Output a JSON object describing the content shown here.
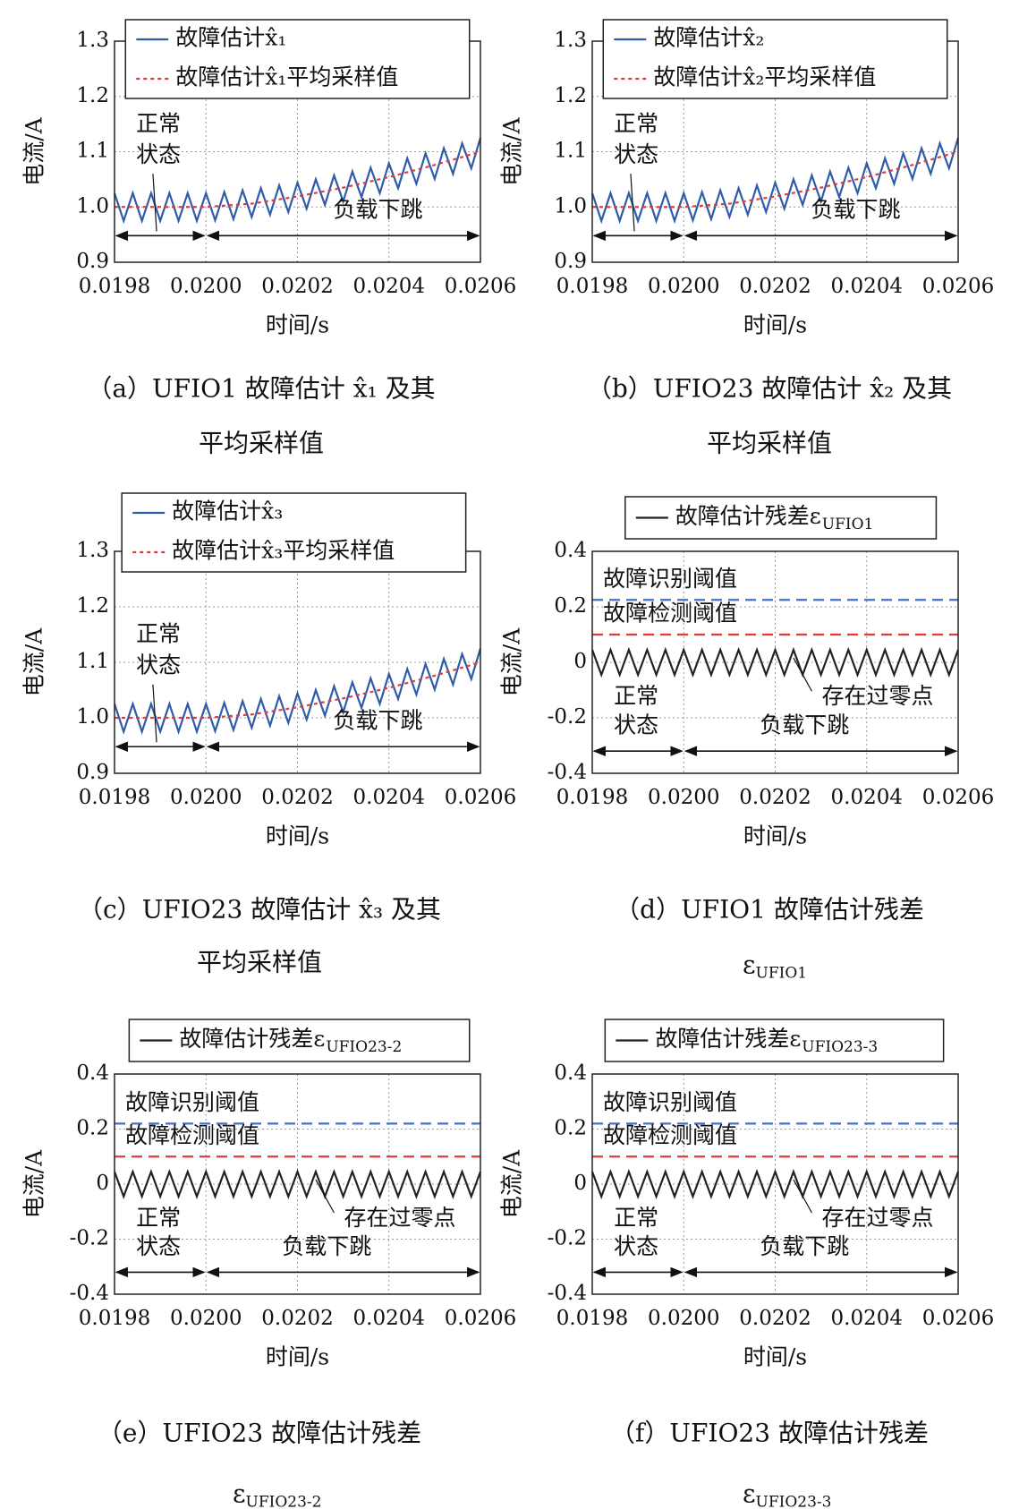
{
  "chart_data": [
    {
      "type": "line",
      "ylabel": "电流/A",
      "xlabel": "时间/s",
      "caption": [
        "（a）UFIO1 故障估计 x̂₁ 及其",
        "平均采样值"
      ],
      "xlim": [
        0.0198,
        0.0206
      ],
      "xticks": [
        0.0198,
        {
          "value": 0.02,
          "label": "0.0200"
        },
        0.0202,
        0.0204,
        0.0206
      ],
      "ylim": [
        0.9,
        1.3
      ],
      "yticks": [
        0.9,
        {
          "value": 1,
          "label": "1.0"
        },
        1.1,
        1.2,
        1.3
      ],
      "grid": true,
      "legend": "upper left",
      "series": [
        {
          "name": "故障估计x̂₁",
          "color": "#2e5ca8",
          "linestyle": "solid",
          "x": [
            0.0198,
            0.01982,
            0.01984,
            0.01986,
            0.01988,
            0.0199,
            0.01992,
            0.01994,
            0.01996,
            0.01998,
            0.02,
            0.02002,
            0.02004,
            0.02006,
            0.02008,
            0.0201,
            0.02012,
            0.02014,
            0.02016,
            0.02018,
            0.0202,
            0.02022,
            0.02024,
            0.02026,
            0.02028,
            0.0203,
            0.02032,
            0.02034,
            0.02036,
            0.02038,
            0.0204,
            0.02042,
            0.02044,
            0.02046,
            0.02048,
            0.0205,
            0.02052,
            0.02054,
            0.02056,
            0.02058,
            0.0206
          ],
          "values": [
            1.025,
            0.975,
            1.025,
            0.975,
            1.025,
            0.975,
            1.025,
            0.975,
            1.025,
            0.975,
            1.025,
            0.976,
            1.027,
            0.978,
            1.03,
            0.982,
            1.034,
            0.986,
            1.039,
            0.991,
            1.044,
            0.997,
            1.05,
            1.004,
            1.057,
            1.01,
            1.064,
            1.018,
            1.071,
            1.025,
            1.079,
            1.034,
            1.088,
            1.042,
            1.097,
            1.051,
            1.106,
            1.06,
            1.115,
            1.07,
            1.125
          ]
        },
        {
          "name": "故障估计x̂₁平均采样值",
          "color": "#e03c3c",
          "linestyle": "dotted",
          "x": [
            0.0198,
            0.02,
            0.0201,
            0.0202,
            0.0203,
            0.0204,
            0.0205,
            0.0206
          ],
          "values": [
            1,
            1,
            1.006,
            1.019,
            1.035,
            1.054,
            1.076,
            1.1
          ]
        }
      ],
      "spans": [
        {
          "label": [
            "正常",
            "状态"
          ],
          "from": 0.0198,
          "to": 0.02
        },
        {
          "label": [
            "负载下跳"
          ],
          "from": 0.02,
          "to": 0.0206
        }
      ]
    },
    {
      "type": "line",
      "ylabel": "电流/A",
      "xlabel": "时间/s",
      "caption": [
        "（b）UFIO23 故障估计 x̂₂ 及其",
        "平均采样值"
      ],
      "xlim": [
        0.0198,
        0.0206
      ],
      "xticks": [
        0.0198,
        {
          "value": 0.02,
          "label": "0.0200"
        },
        0.0202,
        0.0204,
        0.0206
      ],
      "ylim": [
        0.9,
        1.3
      ],
      "yticks": [
        0.9,
        {
          "value": 1,
          "label": "1.0"
        },
        1.1,
        1.2,
        1.3
      ],
      "grid": true,
      "legend": "upper left",
      "series": [
        {
          "name": "故障估计x̂₂",
          "color": "#2e5ca8",
          "linestyle": "solid",
          "x": [
            0.0198,
            0.01982,
            0.01984,
            0.01986,
            0.01988,
            0.0199,
            0.01992,
            0.01994,
            0.01996,
            0.01998,
            0.02,
            0.02002,
            0.02004,
            0.02006,
            0.02008,
            0.0201,
            0.02012,
            0.02014,
            0.02016,
            0.02018,
            0.0202,
            0.02022,
            0.02024,
            0.02026,
            0.02028,
            0.0203,
            0.02032,
            0.02034,
            0.02036,
            0.02038,
            0.0204,
            0.02042,
            0.02044,
            0.02046,
            0.02048,
            0.0205,
            0.02052,
            0.02054,
            0.02056,
            0.02058,
            0.0206
          ],
          "values": [
            1.025,
            0.975,
            1.025,
            0.975,
            1.025,
            0.975,
            1.025,
            0.975,
            1.025,
            0.975,
            1.025,
            0.976,
            1.027,
            0.978,
            1.03,
            0.982,
            1.034,
            0.986,
            1.039,
            0.991,
            1.044,
            0.997,
            1.05,
            1.004,
            1.057,
            1.01,
            1.064,
            1.018,
            1.071,
            1.025,
            1.079,
            1.034,
            1.088,
            1.042,
            1.097,
            1.051,
            1.106,
            1.06,
            1.115,
            1.07,
            1.125
          ]
        },
        {
          "name": "故障估计x̂₂平均采样值",
          "color": "#e03c3c",
          "linestyle": "dotted",
          "x": [
            0.0198,
            0.02,
            0.0201,
            0.0202,
            0.0203,
            0.0204,
            0.0205,
            0.0206
          ],
          "values": [
            1,
            1,
            1.006,
            1.019,
            1.035,
            1.054,
            1.076,
            1.1
          ]
        }
      ],
      "spans": [
        {
          "label": [
            "正常",
            "状态"
          ],
          "from": 0.0198,
          "to": 0.02
        },
        {
          "label": [
            "负载下跳"
          ],
          "from": 0.02,
          "to": 0.0206
        }
      ]
    },
    {
      "type": "line",
      "ylabel": "电流/A",
      "xlabel": "时间/s",
      "caption": [
        "（c）UFIO23 故障估计 x̂₃ 及其",
        "平均采样值"
      ],
      "xlim": [
        0.0198,
        0.0206
      ],
      "xticks": [
        0.0198,
        {
          "value": 0.02,
          "label": "0.0200"
        },
        0.0202,
        0.0204,
        0.0206
      ],
      "ylim": [
        0.9,
        1.3
      ],
      "yticks": [
        0.9,
        {
          "value": 1,
          "label": "1.0"
        },
        1.1,
        1.2,
        1.3
      ],
      "grid": true,
      "legend": "upper left",
      "series": [
        {
          "name": "故障估计x̂₃",
          "color": "#2e5ca8",
          "linestyle": "solid",
          "x": [
            0.0198,
            0.01982,
            0.01984,
            0.01986,
            0.01988,
            0.0199,
            0.01992,
            0.01994,
            0.01996,
            0.01998,
            0.02,
            0.02002,
            0.02004,
            0.02006,
            0.02008,
            0.0201,
            0.02012,
            0.02014,
            0.02016,
            0.02018,
            0.0202,
            0.02022,
            0.02024,
            0.02026,
            0.02028,
            0.0203,
            0.02032,
            0.02034,
            0.02036,
            0.02038,
            0.0204,
            0.02042,
            0.02044,
            0.02046,
            0.02048,
            0.0205,
            0.02052,
            0.02054,
            0.02056,
            0.02058,
            0.0206
          ],
          "values": [
            1.025,
            0.975,
            1.025,
            0.975,
            1.025,
            0.975,
            1.025,
            0.975,
            1.025,
            0.975,
            1.025,
            0.976,
            1.027,
            0.978,
            1.03,
            0.982,
            1.034,
            0.986,
            1.039,
            0.991,
            1.044,
            0.997,
            1.05,
            1.004,
            1.057,
            1.01,
            1.064,
            1.018,
            1.071,
            1.025,
            1.079,
            1.034,
            1.088,
            1.042,
            1.097,
            1.051,
            1.106,
            1.06,
            1.115,
            1.07,
            1.125
          ]
        },
        {
          "name": "故障估计x̂₃平均采样值",
          "color": "#e03c3c",
          "linestyle": "dotted",
          "x": [
            0.0198,
            0.02,
            0.0201,
            0.0202,
            0.0203,
            0.0204,
            0.0205,
            0.0206
          ],
          "values": [
            1,
            1,
            1.006,
            1.019,
            1.035,
            1.054,
            1.076,
            1.1
          ]
        }
      ],
      "spans": [
        {
          "label": [
            "正常",
            "状态"
          ],
          "from": 0.0198,
          "to": 0.02
        },
        {
          "label": [
            "负载下跳"
          ],
          "from": 0.02,
          "to": 0.0206
        }
      ]
    },
    {
      "type": "line",
      "ylabel": "电流/A",
      "xlabel": "时间/s",
      "caption": [
        "（d）UFIO1 故障估计残差",
        {
          "text": "ε",
          "sub": "UFIO1"
        }
      ],
      "xlim": [
        0.0198,
        0.0206
      ],
      "xticks": [
        0.0198,
        {
          "value": 0.02,
          "label": "0.0200"
        },
        0.0202,
        0.0204,
        0.0206
      ],
      "ylim": [
        -0.4,
        0.4
      ],
      "yticks": [
        -0.4,
        -0.2,
        0,
        0.2,
        0.4
      ],
      "grid": true,
      "legend": "top",
      "series": [
        {
          "name": "故障估计残差ε",
          "name_sub": "UFIO1",
          "color": "#222222",
          "linestyle": "solid",
          "x": [
            0.0198,
            0.01982,
            0.01984,
            0.01986,
            0.01988,
            0.0199,
            0.01992,
            0.01994,
            0.01996,
            0.01998,
            0.02,
            0.02002,
            0.02004,
            0.02006,
            0.02008,
            0.0201,
            0.02012,
            0.02014,
            0.02016,
            0.02018,
            0.0202,
            0.02022,
            0.02024,
            0.02026,
            0.02028,
            0.0203,
            0.02032,
            0.02034,
            0.02036,
            0.02038,
            0.0204,
            0.02042,
            0.02044,
            0.02046,
            0.02048,
            0.0205,
            0.02052,
            0.02054,
            0.02056,
            0.02058,
            0.0206
          ],
          "values": [
            0.045,
            -0.045,
            0.045,
            -0.045,
            0.045,
            -0.045,
            0.045,
            -0.045,
            0.045,
            -0.045,
            0.045,
            -0.045,
            0.045,
            -0.045,
            0.045,
            -0.045,
            0.045,
            -0.045,
            0.045,
            -0.045,
            0.045,
            -0.045,
            0.045,
            -0.045,
            0.045,
            -0.045,
            0.045,
            -0.045,
            0.045,
            -0.045,
            0.045,
            -0.045,
            0.045,
            -0.045,
            0.045,
            -0.045,
            0.045,
            -0.045,
            0.045,
            -0.045,
            0.045
          ]
        }
      ],
      "hlines": [
        {
          "label": "故障识别阈值",
          "value": 0.225,
          "color": "#4472c4"
        },
        {
          "label": "故障检测阈值",
          "value": 0.1,
          "color": "#e03c3c"
        }
      ],
      "annotations": [
        "存在过零点"
      ],
      "spans": [
        {
          "label": [
            "正常",
            "状态"
          ],
          "from": 0.0198,
          "to": 0.02
        },
        {
          "label": [
            "负载下跳"
          ],
          "from": 0.02,
          "to": 0.0206
        }
      ]
    },
    {
      "type": "line",
      "ylabel": "电流/A",
      "xlabel": "时间/s",
      "caption": [
        "（e）UFIO23 故障估计残差",
        {
          "text": "ε",
          "sub": "UFIO23-2"
        }
      ],
      "xlim": [
        0.0198,
        0.0206
      ],
      "xticks": [
        0.0198,
        {
          "value": 0.02,
          "label": "0.0200"
        },
        0.0202,
        0.0204,
        0.0206
      ],
      "ylim": [
        -0.4,
        0.4
      ],
      "yticks": [
        -0.4,
        -0.2,
        0,
        0.2,
        0.4
      ],
      "grid": true,
      "legend": "top",
      "series": [
        {
          "name": "故障估计残差ε",
          "name_sub": "UFIO23-2",
          "color": "#222222",
          "linestyle": "solid",
          "x": [
            0.0198,
            0.01982,
            0.01984,
            0.01986,
            0.01988,
            0.0199,
            0.01992,
            0.01994,
            0.01996,
            0.01998,
            0.02,
            0.02002,
            0.02004,
            0.02006,
            0.02008,
            0.0201,
            0.02012,
            0.02014,
            0.02016,
            0.02018,
            0.0202,
            0.02022,
            0.02024,
            0.02026,
            0.02028,
            0.0203,
            0.02032,
            0.02034,
            0.02036,
            0.02038,
            0.0204,
            0.02042,
            0.02044,
            0.02046,
            0.02048,
            0.0205,
            0.02052,
            0.02054,
            0.02056,
            0.02058,
            0.0206
          ],
          "values": [
            0.045,
            -0.045,
            0.045,
            -0.045,
            0.045,
            -0.045,
            0.045,
            -0.045,
            0.045,
            -0.045,
            0.045,
            -0.045,
            0.045,
            -0.045,
            0.045,
            -0.045,
            0.045,
            -0.045,
            0.045,
            -0.045,
            0.045,
            -0.045,
            0.045,
            -0.045,
            0.045,
            -0.045,
            0.045,
            -0.045,
            0.045,
            -0.045,
            0.045,
            -0.045,
            0.045,
            -0.045,
            0.045,
            -0.045,
            0.045,
            -0.045,
            0.045,
            -0.045,
            0.045
          ]
        }
      ],
      "hlines": [
        {
          "label": "故障识别阈值",
          "value": 0.22,
          "color": "#4472c4"
        },
        {
          "label": "故障检测阈值",
          "value": 0.1,
          "color": "#e03c3c"
        }
      ],
      "annotations": [
        "存在过零点"
      ],
      "spans": [
        {
          "label": [
            "正常",
            "状态"
          ],
          "from": 0.0198,
          "to": 0.02
        },
        {
          "label": [
            "负载下跳"
          ],
          "from": 0.02,
          "to": 0.0206
        }
      ]
    },
    {
      "type": "line",
      "ylabel": "电流/A",
      "xlabel": "时间/s",
      "caption": [
        "（f）UFIO23 故障估计残差",
        {
          "text": "ε",
          "sub": "UFIO23-3"
        }
      ],
      "xlim": [
        0.0198,
        0.0206
      ],
      "xticks": [
        0.0198,
        {
          "value": 0.02,
          "label": "0.0200"
        },
        0.0202,
        0.0204,
        0.0206
      ],
      "ylim": [
        -0.4,
        0.4
      ],
      "yticks": [
        -0.4,
        -0.2,
        0,
        0.2,
        0.4
      ],
      "grid": true,
      "legend": "top",
      "series": [
        {
          "name": "故障估计残差ε",
          "name_sub": "UFIO23-3",
          "color": "#222222",
          "linestyle": "solid",
          "x": [
            0.0198,
            0.01982,
            0.01984,
            0.01986,
            0.01988,
            0.0199,
            0.01992,
            0.01994,
            0.01996,
            0.01998,
            0.02,
            0.02002,
            0.02004,
            0.02006,
            0.02008,
            0.0201,
            0.02012,
            0.02014,
            0.02016,
            0.02018,
            0.0202,
            0.02022,
            0.02024,
            0.02026,
            0.02028,
            0.0203,
            0.02032,
            0.02034,
            0.02036,
            0.02038,
            0.0204,
            0.02042,
            0.02044,
            0.02046,
            0.02048,
            0.0205,
            0.02052,
            0.02054,
            0.02056,
            0.02058,
            0.0206
          ],
          "values": [
            0.045,
            -0.045,
            0.045,
            -0.045,
            0.045,
            -0.045,
            0.045,
            -0.045,
            0.045,
            -0.045,
            0.045,
            -0.045,
            0.045,
            -0.045,
            0.045,
            -0.045,
            0.045,
            -0.045,
            0.045,
            -0.045,
            0.045,
            -0.045,
            0.045,
            -0.045,
            0.045,
            -0.045,
            0.045,
            -0.045,
            0.045,
            -0.045,
            0.045,
            -0.045,
            0.045,
            -0.045,
            0.045,
            -0.045,
            0.045,
            -0.045,
            0.045,
            -0.045,
            0.045
          ]
        }
      ],
      "hlines": [
        {
          "label": "故障识别阈值",
          "value": 0.22,
          "color": "#4472c4"
        },
        {
          "label": "故障检测阈值",
          "value": 0.1,
          "color": "#e03c3c"
        }
      ],
      "annotations": [
        "存在过零点"
      ],
      "spans": [
        {
          "label": [
            "正常",
            "状态"
          ],
          "from": 0.0198,
          "to": 0.02
        },
        {
          "label": [
            "负载下跳"
          ],
          "from": 0.02,
          "to": 0.0206
        }
      ]
    }
  ]
}
